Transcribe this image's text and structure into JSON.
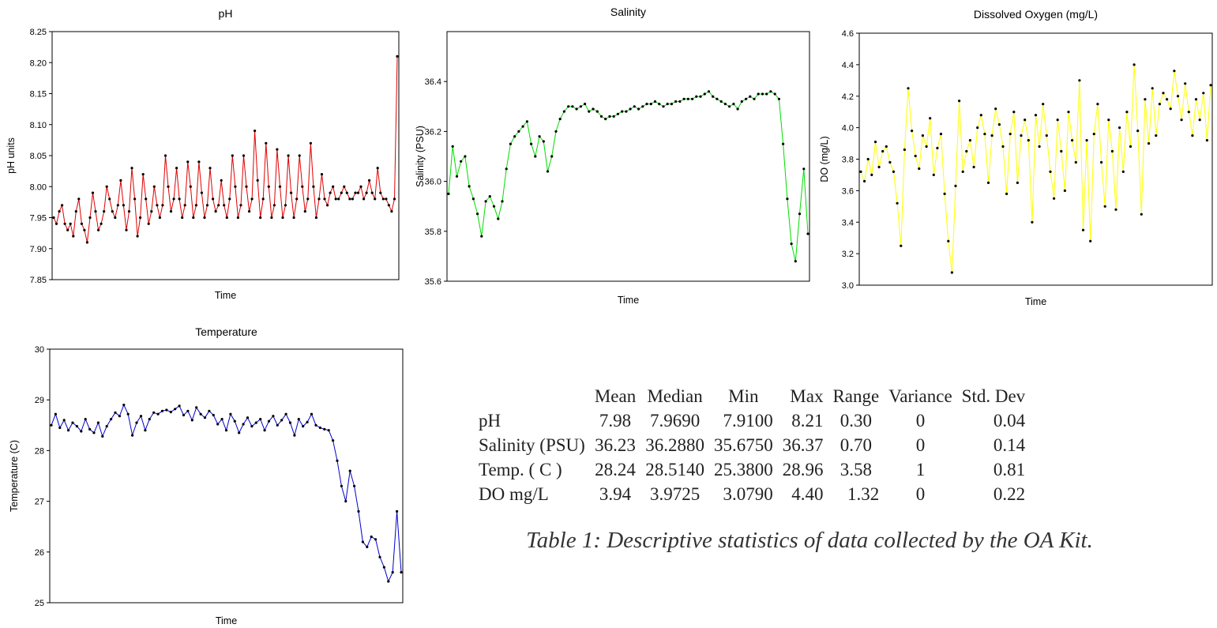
{
  "chart_data": [
    {
      "type": "line",
      "title": "pH",
      "xlabel": "Time",
      "ylabel": "pH units",
      "ylim": [
        7.85,
        8.25
      ],
      "yticks": [
        "7.85",
        "7.90",
        "7.95",
        "8.00",
        "8.05",
        "8.10",
        "8.15",
        "8.20",
        "8.25"
      ],
      "line_color": "#e00000",
      "marker_color": "#000000",
      "grid": false,
      "values": [
        7.95,
        7.94,
        7.96,
        7.97,
        7.94,
        7.93,
        7.94,
        7.92,
        7.96,
        7.98,
        7.94,
        7.93,
        7.91,
        7.95,
        7.99,
        7.96,
        7.93,
        7.94,
        7.96,
        8.0,
        7.98,
        7.96,
        7.95,
        7.97,
        8.01,
        7.97,
        7.93,
        7.96,
        8.03,
        7.98,
        7.92,
        7.95,
        8.02,
        7.98,
        7.94,
        7.96,
        8.0,
        7.97,
        7.95,
        7.97,
        8.05,
        8.0,
        7.96,
        7.98,
        8.03,
        7.98,
        7.95,
        7.97,
        8.04,
        8.0,
        7.95,
        7.97,
        8.04,
        7.99,
        7.95,
        7.97,
        8.03,
        7.98,
        7.96,
        7.97,
        8.01,
        7.97,
        7.95,
        7.98,
        8.05,
        8.0,
        7.95,
        7.97,
        8.05,
        8.0,
        7.96,
        7.98,
        8.09,
        8.01,
        7.95,
        7.98,
        8.07,
        8.0,
        7.95,
        7.97,
        8.06,
        8.0,
        7.95,
        7.97,
        8.05,
        7.99,
        7.95,
        7.98,
        8.05,
        8.0,
        7.96,
        7.98,
        8.07,
        8.0,
        7.95,
        7.98,
        8.02,
        7.98,
        7.97,
        7.99,
        8.0,
        7.98,
        7.98,
        7.99,
        8.0,
        7.99,
        7.98,
        7.98,
        7.99,
        7.99,
        8.0,
        7.98,
        7.99,
        8.01,
        7.99,
        7.98,
        8.03,
        7.99,
        7.98,
        7.98,
        7.97,
        7.96,
        7.98,
        8.21
      ]
    },
    {
      "type": "line",
      "title": "Salinity",
      "xlabel": "Time",
      "ylabel": "Salinity (PSU)",
      "ylim": [
        35.6,
        36.6
      ],
      "yticks": [
        "35.6",
        "35.8",
        "36.0",
        "36.2",
        "36.4"
      ],
      "line_color": "#00dd00",
      "marker_color": "#000000",
      "grid": false,
      "values": [
        35.95,
        36.14,
        36.02,
        36.08,
        36.1,
        35.98,
        35.93,
        35.87,
        35.78,
        35.92,
        35.94,
        35.9,
        35.85,
        35.92,
        36.05,
        36.15,
        36.18,
        36.2,
        36.22,
        36.24,
        36.15,
        36.1,
        36.18,
        36.16,
        36.04,
        36.1,
        36.2,
        36.25,
        36.28,
        36.3,
        36.3,
        36.29,
        36.3,
        36.31,
        36.28,
        36.29,
        36.28,
        36.26,
        36.25,
        36.26,
        36.26,
        36.27,
        36.28,
        36.28,
        36.29,
        36.3,
        36.29,
        36.3,
        36.31,
        36.31,
        36.32,
        36.31,
        36.3,
        36.31,
        36.31,
        36.32,
        36.32,
        36.33,
        36.33,
        36.33,
        36.34,
        36.34,
        36.35,
        36.36,
        36.34,
        36.33,
        36.32,
        36.31,
        36.3,
        36.31,
        36.29,
        36.32,
        36.33,
        36.34,
        36.33,
        36.35,
        36.35,
        36.35,
        36.36,
        36.35,
        36.33,
        36.15,
        35.93,
        35.75,
        35.68,
        35.87,
        36.05,
        35.79
      ]
    },
    {
      "type": "line",
      "title": "Dissolved Oxygen (mg/L)",
      "xlabel": "Time",
      "ylabel": "DO (mg/L)",
      "ylim": [
        3.0,
        4.6
      ],
      "yticks": [
        "3.0",
        "3.2",
        "3.4",
        "3.6",
        "3.8",
        "4.0",
        "4.2",
        "4.4",
        "4.6"
      ],
      "line_color": "#ffff00",
      "marker_color": "#000000",
      "grid": false,
      "values": [
        3.72,
        3.66,
        3.8,
        3.7,
        3.91,
        3.75,
        3.85,
        3.88,
        3.78,
        3.72,
        3.52,
        3.25,
        3.86,
        4.25,
        3.98,
        3.82,
        3.74,
        3.95,
        3.88,
        4.06,
        3.7,
        3.87,
        3.96,
        3.58,
        3.28,
        3.08,
        3.63,
        4.17,
        3.72,
        3.85,
        3.92,
        3.75,
        4.0,
        4.08,
        3.96,
        3.65,
        3.95,
        4.12,
        4.02,
        3.88,
        3.58,
        3.96,
        4.1,
        3.65,
        3.95,
        4.05,
        3.92,
        3.4,
        4.08,
        3.88,
        4.15,
        3.95,
        3.72,
        3.55,
        4.05,
        3.85,
        3.6,
        4.1,
        3.92,
        3.78,
        4.3,
        3.35,
        3.92,
        3.28,
        3.96,
        4.15,
        3.78,
        3.5,
        4.05,
        3.85,
        3.48,
        4.0,
        3.72,
        4.1,
        3.88,
        4.4,
        3.98,
        3.45,
        4.18,
        3.9,
        4.25,
        3.95,
        4.15,
        4.22,
        4.18,
        4.12,
        4.36,
        4.2,
        4.05,
        4.28,
        4.1,
        3.95,
        4.18,
        4.05,
        4.22,
        3.92,
        4.27
      ]
    },
    {
      "type": "line",
      "title": "Temperature",
      "xlabel": "Time",
      "ylabel": "Temperature (C)",
      "ylim": [
        25,
        30
      ],
      "yticks": [
        "25",
        "26",
        "27",
        "28",
        "29",
        "30"
      ],
      "line_color": "#0000cc",
      "marker_color": "#000000",
      "grid": false,
      "values": [
        28.5,
        28.72,
        28.45,
        28.6,
        28.4,
        28.55,
        28.48,
        28.38,
        28.62,
        28.42,
        28.35,
        28.55,
        28.28,
        28.48,
        28.62,
        28.75,
        28.68,
        28.9,
        28.72,
        28.3,
        28.55,
        28.68,
        28.4,
        28.62,
        28.75,
        28.72,
        28.78,
        28.8,
        28.76,
        28.82,
        28.88,
        28.7,
        28.78,
        28.6,
        28.85,
        28.72,
        28.65,
        28.78,
        28.7,
        28.52,
        28.62,
        28.4,
        28.72,
        28.58,
        28.35,
        28.52,
        28.65,
        28.48,
        28.55,
        28.62,
        28.4,
        28.58,
        28.68,
        28.5,
        28.6,
        28.72,
        28.55,
        28.3,
        28.62,
        28.48,
        28.56,
        28.72,
        28.5,
        28.45,
        28.42,
        28.4,
        28.2,
        27.8,
        27.3,
        27.0,
        27.6,
        27.3,
        26.8,
        26.2,
        26.1,
        26.3,
        26.25,
        25.9,
        25.7,
        25.42,
        25.6,
        26.8,
        25.6
      ]
    }
  ],
  "stats_table": {
    "headers": [
      "Mean",
      "Median",
      "Min",
      "Max",
      "Range",
      "Variance",
      "Std. Dev"
    ],
    "rows": [
      {
        "label": "pH",
        "mean": "7.98",
        "median": "7.9690",
        "min": "7.9100",
        "max": "8.21",
        "range": "0.30",
        "variance": "0",
        "std": "0.04"
      },
      {
        "label": "Salinity (PSU)",
        "mean": "36.23",
        "median": "36.2880",
        "min": "35.6750",
        "max": "36.37",
        "range": "0.70",
        "variance": "0",
        "std": "0.14"
      },
      {
        "label": "Temp. ( C )",
        "mean": "28.24",
        "median": "28.5140",
        "min": "25.3800",
        "max": "28.96",
        "range": "3.58",
        "variance": "1",
        "std": "0.81"
      },
      {
        "label": "DO mg/L",
        "mean": "3.94",
        "median": "3.9725",
        "min": "3.0790",
        "max": "4.40",
        "range": "1.32",
        "variance": "0",
        "std": "0.22"
      }
    ]
  },
  "caption": "Table 1: Descriptive statistics of data collected  by the OA Kit."
}
